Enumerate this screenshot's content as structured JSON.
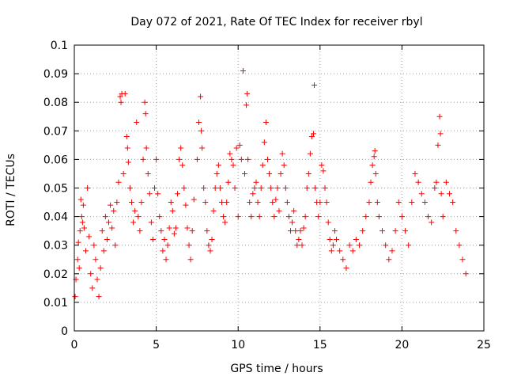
{
  "chart_data": {
    "type": "scatter",
    "title": "Day 072 of 2021, Rate Of TEC Index for receiver rbyl",
    "xlabel": "GPS time / hours",
    "ylabel": "ROTI / TECUs",
    "xlim": [
      0,
      25
    ],
    "ylim": [
      0,
      0.1
    ],
    "xticks": [
      "0",
      "5",
      "10",
      "15",
      "20",
      "25"
    ],
    "yticks": [
      "0",
      "0.01",
      "0.02",
      "0.03",
      "0.04",
      "0.05",
      "0.06",
      "0.07",
      "0.08",
      "0.09",
      "0.1"
    ],
    "grid": true,
    "marker": "+",
    "color": "#ff0000",
    "series": [
      {
        "values_description_free": true,
        "points": [
          [
            0.05,
            0.012
          ],
          [
            0.1,
            0.018
          ],
          [
            0.2,
            0.025
          ],
          [
            0.25,
            0.031
          ],
          [
            0.3,
            0.022
          ],
          [
            0.35,
            0.035
          ],
          [
            0.4,
            0.046
          ],
          [
            0.45,
            0.04
          ],
          [
            0.5,
            0.038
          ],
          [
            0.55,
            0.044
          ],
          [
            0.6,
            0.036
          ],
          [
            0.7,
            0.028
          ],
          [
            0.8,
            0.05
          ],
          [
            0.9,
            0.033
          ],
          [
            1.0,
            0.02
          ],
          [
            1.1,
            0.015
          ],
          [
            1.2,
            0.03
          ],
          [
            1.3,
            0.025
          ],
          [
            1.4,
            0.018
          ],
          [
            1.5,
            0.012
          ],
          [
            1.6,
            0.022
          ],
          [
            1.7,
            0.035
          ],
          [
            1.8,
            0.028
          ],
          [
            1.9,
            0.04
          ],
          [
            2.0,
            0.032
          ],
          [
            2.1,
            0.038
          ],
          [
            2.2,
            0.044
          ],
          [
            2.3,
            0.036
          ],
          [
            2.4,
            0.042
          ],
          [
            2.5,
            0.03
          ],
          [
            2.6,
            0.045
          ],
          [
            2.7,
            0.052
          ],
          [
            2.8,
            0.082
          ],
          [
            2.85,
            0.08
          ],
          [
            2.9,
            0.083
          ],
          [
            3.0,
            0.055
          ],
          [
            3.1,
            0.083
          ],
          [
            3.2,
            0.068
          ],
          [
            3.25,
            0.064
          ],
          [
            3.3,
            0.059
          ],
          [
            3.4,
            0.05
          ],
          [
            3.5,
            0.045
          ],
          [
            3.6,
            0.038
          ],
          [
            3.7,
            0.042
          ],
          [
            3.8,
            0.073
          ],
          [
            3.9,
            0.04
          ],
          [
            4.0,
            0.035
          ],
          [
            4.1,
            0.045
          ],
          [
            4.2,
            0.06
          ],
          [
            4.3,
            0.08
          ],
          [
            4.35,
            0.076
          ],
          [
            4.4,
            0.064
          ],
          [
            4.5,
            0.055
          ],
          [
            4.6,
            0.048
          ],
          [
            4.7,
            0.038
          ],
          [
            4.8,
            0.032
          ],
          [
            4.9,
            0.05
          ],
          [
            5.0,
            0.06
          ],
          [
            5.1,
            0.048
          ],
          [
            5.2,
            0.04
          ],
          [
            5.3,
            0.035
          ],
          [
            5.4,
            0.028
          ],
          [
            5.5,
            0.032
          ],
          [
            5.6,
            0.025
          ],
          [
            5.7,
            0.03
          ],
          [
            5.8,
            0.036
          ],
          [
            5.9,
            0.045
          ],
          [
            6.0,
            0.042
          ],
          [
            6.1,
            0.034
          ],
          [
            6.2,
            0.036
          ],
          [
            6.3,
            0.048
          ],
          [
            6.4,
            0.06
          ],
          [
            6.5,
            0.064
          ],
          [
            6.6,
            0.058
          ],
          [
            6.7,
            0.05
          ],
          [
            6.8,
            0.044
          ],
          [
            6.9,
            0.036
          ],
          [
            7.0,
            0.03
          ],
          [
            7.1,
            0.025
          ],
          [
            7.2,
            0.035
          ],
          [
            7.3,
            0.046
          ],
          [
            7.5,
            0.06
          ],
          [
            7.6,
            0.073
          ],
          [
            7.7,
            0.082
          ],
          [
            7.75,
            0.07
          ],
          [
            7.8,
            0.064
          ],
          [
            7.9,
            0.05
          ],
          [
            8.0,
            0.045
          ],
          [
            8.1,
            0.035
          ],
          [
            8.2,
            0.03
          ],
          [
            8.3,
            0.028
          ],
          [
            8.4,
            0.032
          ],
          [
            8.5,
            0.042
          ],
          [
            8.6,
            0.05
          ],
          [
            8.7,
            0.055
          ],
          [
            8.8,
            0.058
          ],
          [
            8.9,
            0.05
          ],
          [
            9.0,
            0.045
          ],
          [
            9.1,
            0.04
          ],
          [
            9.2,
            0.038
          ],
          [
            9.3,
            0.045
          ],
          [
            9.4,
            0.052
          ],
          [
            9.5,
            0.062
          ],
          [
            9.6,
            0.06
          ],
          [
            9.7,
            0.058
          ],
          [
            9.8,
            0.05
          ],
          [
            9.9,
            0.064
          ],
          [
            10.0,
            0.04
          ],
          [
            10.1,
            0.065
          ],
          [
            10.2,
            0.06
          ],
          [
            10.3,
            0.091
          ],
          [
            10.4,
            0.055
          ],
          [
            10.5,
            0.079
          ],
          [
            10.55,
            0.083
          ],
          [
            10.6,
            0.06
          ],
          [
            10.7,
            0.045
          ],
          [
            10.8,
            0.04
          ],
          [
            10.9,
            0.048
          ],
          [
            11.0,
            0.05
          ],
          [
            11.1,
            0.052
          ],
          [
            11.2,
            0.045
          ],
          [
            11.3,
            0.04
          ],
          [
            11.4,
            0.05
          ],
          [
            11.5,
            0.058
          ],
          [
            11.6,
            0.066
          ],
          [
            11.7,
            0.073
          ],
          [
            11.8,
            0.06
          ],
          [
            11.9,
            0.055
          ],
          [
            12.0,
            0.05
          ],
          [
            12.1,
            0.045
          ],
          [
            12.2,
            0.04
          ],
          [
            12.3,
            0.046
          ],
          [
            12.4,
            0.05
          ],
          [
            12.5,
            0.042
          ],
          [
            12.6,
            0.055
          ],
          [
            12.7,
            0.062
          ],
          [
            12.8,
            0.058
          ],
          [
            12.9,
            0.05
          ],
          [
            13.0,
            0.045
          ],
          [
            13.1,
            0.04
          ],
          [
            13.2,
            0.035
          ],
          [
            13.3,
            0.038
          ],
          [
            13.4,
            0.042
          ],
          [
            13.5,
            0.035
          ],
          [
            13.6,
            0.03
          ],
          [
            13.7,
            0.032
          ],
          [
            13.8,
            0.035
          ],
          [
            13.9,
            0.03
          ],
          [
            14.0,
            0.036
          ],
          [
            14.1,
            0.04
          ],
          [
            14.2,
            0.05
          ],
          [
            14.3,
            0.055
          ],
          [
            14.4,
            0.062
          ],
          [
            14.5,
            0.068
          ],
          [
            14.6,
            0.069
          ],
          [
            14.65,
            0.086
          ],
          [
            14.7,
            0.05
          ],
          [
            14.8,
            0.045
          ],
          [
            14.9,
            0.04
          ],
          [
            15.0,
            0.045
          ],
          [
            15.1,
            0.058
          ],
          [
            15.2,
            0.056
          ],
          [
            15.3,
            0.05
          ],
          [
            15.4,
            0.045
          ],
          [
            15.5,
            0.038
          ],
          [
            15.6,
            0.032
          ],
          [
            15.7,
            0.028
          ],
          [
            15.8,
            0.03
          ],
          [
            15.9,
            0.035
          ],
          [
            16.0,
            0.032
          ],
          [
            16.2,
            0.028
          ],
          [
            16.4,
            0.025
          ],
          [
            16.6,
            0.022
          ],
          [
            16.8,
            0.03
          ],
          [
            17.0,
            0.028
          ],
          [
            17.2,
            0.032
          ],
          [
            17.4,
            0.03
          ],
          [
            17.6,
            0.035
          ],
          [
            17.8,
            0.04
          ],
          [
            18.0,
            0.045
          ],
          [
            18.1,
            0.052
          ],
          [
            18.2,
            0.058
          ],
          [
            18.3,
            0.061
          ],
          [
            18.35,
            0.063
          ],
          [
            18.4,
            0.055
          ],
          [
            18.5,
            0.045
          ],
          [
            18.6,
            0.04
          ],
          [
            18.8,
            0.035
          ],
          [
            19.0,
            0.03
          ],
          [
            19.2,
            0.025
          ],
          [
            19.4,
            0.028
          ],
          [
            19.6,
            0.035
          ],
          [
            19.8,
            0.045
          ],
          [
            20.0,
            0.04
          ],
          [
            20.2,
            0.035
          ],
          [
            20.4,
            0.03
          ],
          [
            20.6,
            0.045
          ],
          [
            20.8,
            0.055
          ],
          [
            21.0,
            0.052
          ],
          [
            21.2,
            0.048
          ],
          [
            21.4,
            0.045
          ],
          [
            21.6,
            0.04
          ],
          [
            21.8,
            0.038
          ],
          [
            22.0,
            0.05
          ],
          [
            22.1,
            0.052
          ],
          [
            22.2,
            0.065
          ],
          [
            22.3,
            0.075
          ],
          [
            22.35,
            0.069
          ],
          [
            22.4,
            0.048
          ],
          [
            22.5,
            0.04
          ],
          [
            22.7,
            0.052
          ],
          [
            22.9,
            0.048
          ],
          [
            23.1,
            0.045
          ],
          [
            23.3,
            0.035
          ],
          [
            23.5,
            0.03
          ],
          [
            23.7,
            0.025
          ],
          [
            23.9,
            0.02
          ]
        ]
      }
    ]
  }
}
